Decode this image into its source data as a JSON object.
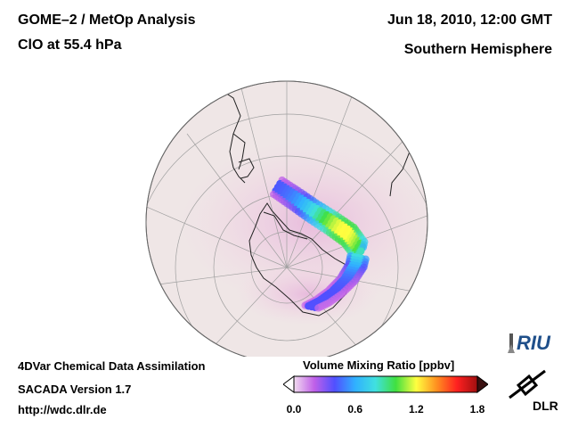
{
  "header": {
    "title_line1": "GOME–2 / MetOp Analysis",
    "title_line2": "ClO at 55.4 hPa",
    "date": "Jun 18, 2010, 12:00 GMT",
    "region": "Southern Hemisphere"
  },
  "footer": {
    "line1": "4DVar Chemical Data Assimilation",
    "line2": "SACADA Version 1.7",
    "line3": "http://wdc.dlr.de"
  },
  "colorbar": {
    "title": "Volume Mixing Ratio [ppbv]",
    "ticks": [
      {
        "label": "0.0",
        "value": 0.0
      },
      {
        "label": "0.6",
        "value": 0.6
      },
      {
        "label": "1.2",
        "value": 1.2
      },
      {
        "label": "1.8",
        "value": 1.8
      }
    ],
    "range": [
      0.0,
      1.8
    ],
    "colors": [
      "#f2dcf0",
      "#c060e8",
      "#5050ff",
      "#30b0ff",
      "#40e0e0",
      "#40e040",
      "#ffff40",
      "#ff9020",
      "#ff2020",
      "#a01010"
    ]
  },
  "logos": {
    "riu": "RIU",
    "dlr": "DLR"
  },
  "colors": {
    "globe_fill": "#efe6e6",
    "background_haze": "#f3d6e4",
    "coastline": "#222222",
    "grid": "#9a9a9a"
  }
}
